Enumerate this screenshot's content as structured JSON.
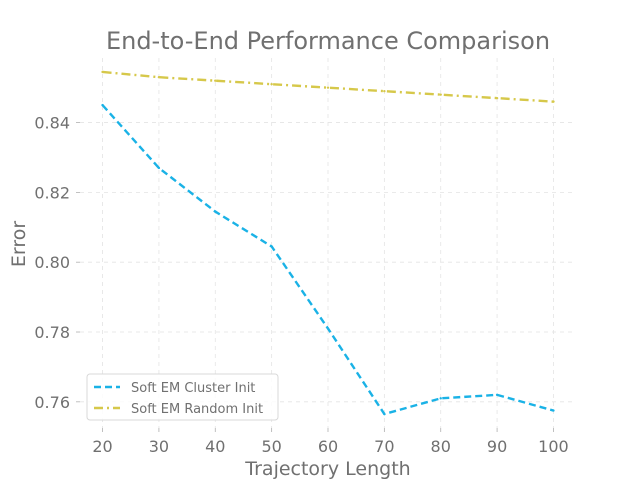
{
  "chart_data": {
    "type": "line",
    "title": "End-to-End Performance Comparison",
    "xlabel": "Trajectory Length",
    "ylabel": "Error",
    "x": [
      20,
      30,
      40,
      50,
      60,
      70,
      80,
      90,
      100
    ],
    "x_ticks": [
      "20",
      "30",
      "40",
      "50",
      "60",
      "70",
      "80",
      "90",
      "100"
    ],
    "y_ticks": [
      "0.76",
      "0.78",
      "0.80",
      "0.82",
      "0.84"
    ],
    "xlim": [
      16,
      104
    ],
    "ylim": [
      0.7525,
      0.8585
    ],
    "grid": true,
    "legend_position": "lower-left",
    "series": [
      {
        "name": "Soft EM Cluster Init",
        "color": "#1ab2e6",
        "style": "dashed",
        "values": [
          0.845,
          0.827,
          0.8145,
          0.8045,
          0.781,
          0.7565,
          0.761,
          0.762,
          0.7575
        ]
      },
      {
        "name": "Soft EM Random Init",
        "color": "#d6c84a",
        "style": "dashdot",
        "values": [
          0.8545,
          0.853,
          0.852,
          0.851,
          0.85,
          0.849,
          0.848,
          0.847,
          0.846
        ]
      }
    ]
  }
}
